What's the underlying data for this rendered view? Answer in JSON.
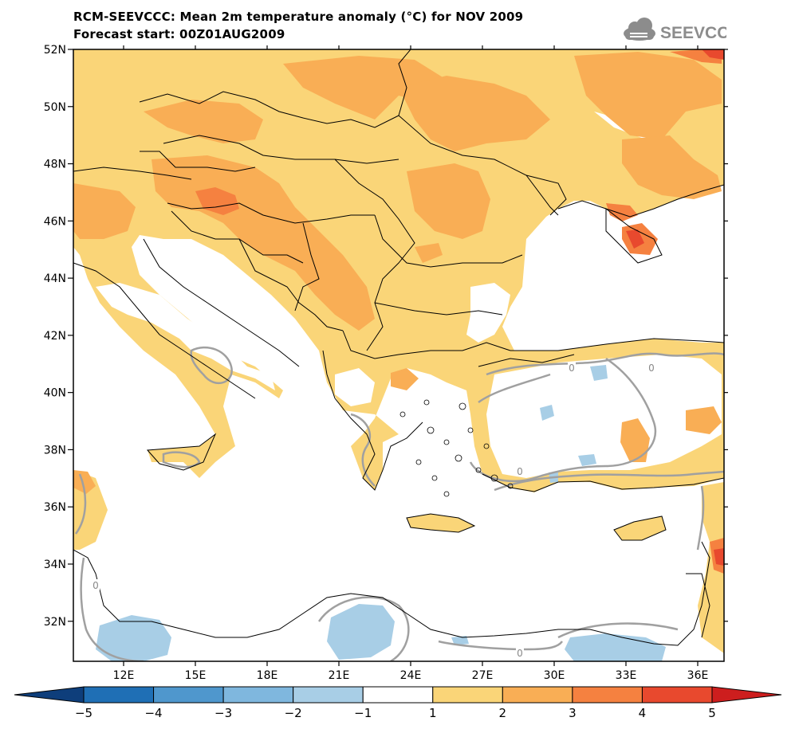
{
  "header": {
    "title": "RCM-SEEVCCC: Mean 2m temperature anomaly (°C) for NOV 2009",
    "subtitle": "Forecast start: 00Z01AUG2009"
  },
  "logo": {
    "text": "SEEVCCC",
    "icon": "cloud-icon"
  },
  "map": {
    "lat_labels": [
      "52N",
      "50N",
      "48N",
      "46N",
      "44N",
      "42N",
      "40N",
      "38N",
      "36N",
      "34N",
      "32N"
    ],
    "lat_values": [
      52,
      50,
      48,
      46,
      44,
      42,
      40,
      38,
      36,
      34,
      32
    ],
    "lon_labels": [
      "12E",
      "15E",
      "18E",
      "21E",
      "24E",
      "27E",
      "30E",
      "33E",
      "36E"
    ],
    "lon_values": [
      12,
      15,
      18,
      21,
      24,
      27,
      30,
      33,
      36
    ],
    "lon_range": [
      9.9,
      37.1
    ],
    "lat_range": [
      30.6,
      52
    ],
    "contour_label": "0",
    "land_color": "#fad578",
    "sea_color": "#ffffff"
  },
  "colorbar": {
    "labels": [
      "−5",
      "−4",
      "−3",
      "−2",
      "−1",
      "1",
      "2",
      "3",
      "4",
      "5"
    ],
    "colors": [
      "#0e3e7b",
      "#1f6fb5",
      "#4f97cd",
      "#7fb7de",
      "#a8cee6",
      "#ffffff",
      "#fad578",
      "#f9ae55",
      "#f58140",
      "#e8492e",
      "#cd1e1e"
    ]
  }
}
